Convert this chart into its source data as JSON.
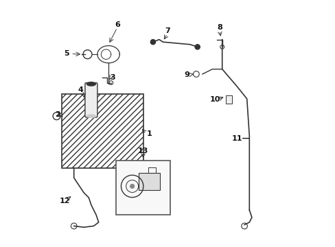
{
  "background_color": "#ffffff",
  "line_color": "#333333",
  "label_color": "#111111",
  "fig_width": 4.89,
  "fig_height": 3.6,
  "dpi": 100
}
